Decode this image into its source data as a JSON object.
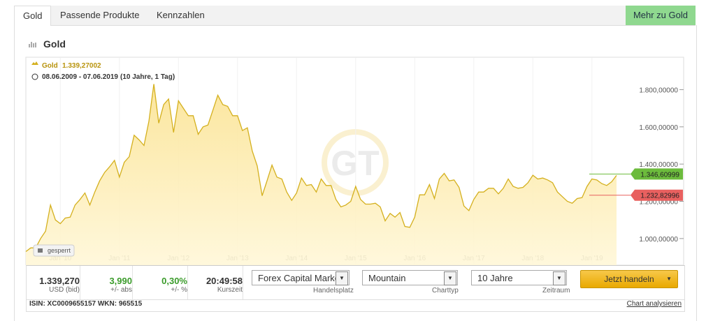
{
  "tabs": [
    "Gold",
    "Passende Produkte",
    "Kennzahlen"
  ],
  "more_button": "Mehr zu Gold",
  "chart_data": {
    "type": "area",
    "title": "Gold",
    "legend_value": "1.339,27002",
    "date_range": "08.06.2009 - 07.06.2019",
    "period_note": "(10 Jahre, 1 Tag)",
    "locked_label": "gesperrt",
    "x": [
      "2009-06",
      "2009-07",
      "2009-08",
      "2009-09",
      "2009-10",
      "2009-11",
      "2009-12",
      "2010-01",
      "2010-02",
      "2010-03",
      "2010-04",
      "2010-05",
      "2010-06",
      "2010-07",
      "2010-08",
      "2010-09",
      "2010-10",
      "2010-11",
      "2010-12",
      "2011-01",
      "2011-02",
      "2011-03",
      "2011-04",
      "2011-05",
      "2011-06",
      "2011-07",
      "2011-08",
      "2011-09",
      "2011-10",
      "2011-11",
      "2011-12",
      "2012-01",
      "2012-02",
      "2012-03",
      "2012-04",
      "2012-05",
      "2012-06",
      "2012-07",
      "2012-08",
      "2012-09",
      "2012-10",
      "2012-11",
      "2012-12",
      "2013-01",
      "2013-02",
      "2013-03",
      "2013-04",
      "2013-05",
      "2013-06",
      "2013-07",
      "2013-08",
      "2013-09",
      "2013-10",
      "2013-11",
      "2013-12",
      "2014-01",
      "2014-02",
      "2014-03",
      "2014-04",
      "2014-05",
      "2014-06",
      "2014-07",
      "2014-08",
      "2014-09",
      "2014-10",
      "2014-11",
      "2014-12",
      "2015-01",
      "2015-02",
      "2015-03",
      "2015-04",
      "2015-05",
      "2015-06",
      "2015-07",
      "2015-08",
      "2015-09",
      "2015-10",
      "2015-11",
      "2015-12",
      "2016-01",
      "2016-02",
      "2016-03",
      "2016-04",
      "2016-05",
      "2016-06",
      "2016-07",
      "2016-08",
      "2016-09",
      "2016-10",
      "2016-11",
      "2016-12",
      "2017-01",
      "2017-02",
      "2017-03",
      "2017-04",
      "2017-05",
      "2017-06",
      "2017-07",
      "2017-08",
      "2017-09",
      "2017-10",
      "2017-11",
      "2017-12",
      "2018-01",
      "2018-02",
      "2018-03",
      "2018-04",
      "2018-05",
      "2018-06",
      "2018-07",
      "2018-08",
      "2018-09",
      "2018-10",
      "2018-11",
      "2018-12",
      "2019-01",
      "2019-02",
      "2019-03",
      "2019-04",
      "2019-05",
      "2019-06"
    ],
    "series": [
      {
        "name": "Gold",
        "color": "#d4b01e",
        "fill": "#fbe79a",
        "values": [
          930,
          950,
          950,
          1000,
          1040,
          1180,
          1100,
          1080,
          1110,
          1115,
          1180,
          1210,
          1245,
          1180,
          1250,
          1310,
          1355,
          1385,
          1420,
          1330,
          1410,
          1440,
          1555,
          1530,
          1500,
          1630,
          1830,
          1620,
          1720,
          1750,
          1570,
          1740,
          1700,
          1660,
          1660,
          1560,
          1600,
          1610,
          1690,
          1770,
          1720,
          1710,
          1660,
          1660,
          1580,
          1595,
          1470,
          1390,
          1230,
          1310,
          1395,
          1330,
          1320,
          1250,
          1205,
          1245,
          1325,
          1285,
          1290,
          1250,
          1320,
          1285,
          1285,
          1210,
          1170,
          1180,
          1200,
          1280,
          1210,
          1185,
          1185,
          1190,
          1170,
          1095,
          1135,
          1115,
          1140,
          1065,
          1060,
          1115,
          1235,
          1235,
          1290,
          1215,
          1320,
          1350,
          1310,
          1315,
          1275,
          1175,
          1150,
          1210,
          1250,
          1250,
          1270,
          1270,
          1240,
          1270,
          1320,
          1280,
          1270,
          1275,
          1300,
          1340,
          1320,
          1325,
          1315,
          1300,
          1250,
          1225,
          1200,
          1190,
          1215,
          1220,
          1280,
          1320,
          1315,
          1295,
          1285,
          1305,
          1339.27
        ]
      }
    ],
    "xlim": [
      "2009-06",
      "2019-06"
    ],
    "xticks": [
      {
        "value": "2010-01",
        "label": "Jan '10"
      },
      {
        "value": "2011-01",
        "label": "Jan '11"
      },
      {
        "value": "2012-01",
        "label": "Jan '12"
      },
      {
        "value": "2013-01",
        "label": "Jan '13"
      },
      {
        "value": "2014-01",
        "label": "Jan '14"
      },
      {
        "value": "2015-01",
        "label": "Jan '15"
      },
      {
        "value": "2016-01",
        "label": "Jan '16"
      },
      {
        "value": "2017-01",
        "label": "Jan '17"
      },
      {
        "value": "2018-01",
        "label": "Jan '18"
      },
      {
        "value": "2019-01",
        "label": "Jan '19"
      }
    ],
    "ylim": [
      857,
      1974
    ],
    "yticks": [
      {
        "value": 1000,
        "label": "1.000,00000"
      },
      {
        "value": 1200,
        "label": "1.200,00000"
      },
      {
        "value": 1400,
        "label": "1.400,00000"
      },
      {
        "value": 1600,
        "label": "1.600,00000"
      },
      {
        "value": 1800,
        "label": "1.800,00000"
      }
    ],
    "markers": [
      {
        "value": 1346.60999,
        "label": "1.346,60999",
        "color": "#6cbb3c"
      },
      {
        "value": 1232.82996,
        "label": "1.232,82996",
        "color": "#e8605f"
      }
    ]
  },
  "quote": {
    "price": "1.339,270",
    "price_label": "USD (bid)",
    "abs": "3,990",
    "abs_label": "+/- abs",
    "pct": "0,30%",
    "pct_label": "+/- %",
    "time": "20:49:58",
    "time_label": "Kurszeit"
  },
  "controls": {
    "venue": "Forex Capital Marke",
    "venue_label": "Handelsplatz",
    "chart_type": "Mountain",
    "chart_type_label": "Charttyp",
    "period": "10 Jahre",
    "period_label": "Zeitraum",
    "trade_button": "Jetzt handeln"
  },
  "footer": {
    "ids": "ISIN: XC0009655157 WKN: 965515",
    "analyze": "Chart analysieren"
  }
}
